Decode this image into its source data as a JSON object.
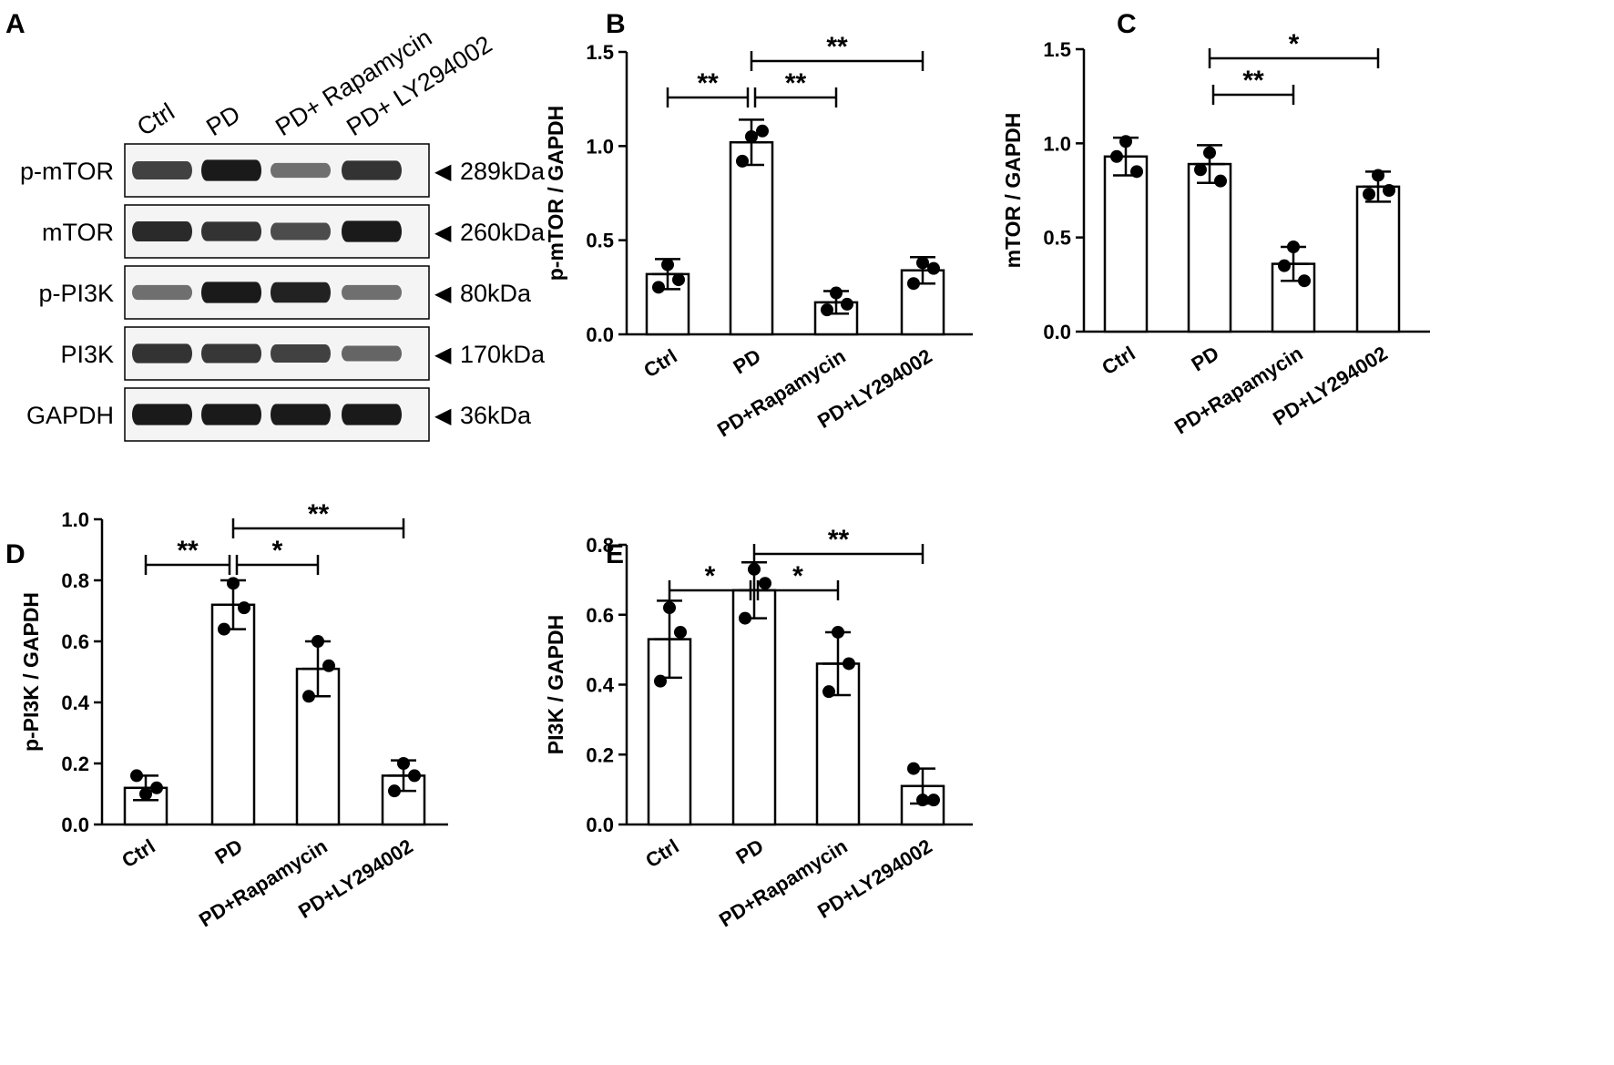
{
  "panel_a": {
    "label": "A",
    "lanes": [
      "Ctrl",
      "PD",
      "PD+ Rapamycin",
      "PD+ LY294002"
    ],
    "blots": [
      {
        "protein": "p-mTOR",
        "size": "289kDa",
        "intensity": [
          0.72,
          0.95,
          0.45,
          0.8
        ]
      },
      {
        "protein": "mTOR",
        "size": "260kDa",
        "intensity": [
          0.85,
          0.8,
          0.65,
          0.95
        ]
      },
      {
        "protein": "p-PI3K",
        "size": "80kDa",
        "intensity": [
          0.45,
          0.95,
          0.9,
          0.45
        ]
      },
      {
        "protein": "PI3K",
        "size": "170kDa",
        "intensity": [
          0.8,
          0.78,
          0.72,
          0.5
        ]
      },
      {
        "protein": "GAPDH",
        "size": "36kDa",
        "intensity": [
          0.95,
          0.95,
          0.95,
          0.95
        ]
      }
    ],
    "arrow_glyph": "◀",
    "colors": {
      "band": "#111111",
      "membrane": "#f4f4f4"
    }
  },
  "chart_data": [
    {
      "panel": "B",
      "type": "bar",
      "categories": [
        "Ctrl",
        "PD",
        "PD+Rapamycin",
        "PD+LY294002"
      ],
      "values": [
        0.32,
        1.02,
        0.17,
        0.34
      ],
      "errors": [
        0.08,
        0.12,
        0.06,
        0.07
      ],
      "points": [
        [
          0.37,
          0.25,
          0.29
        ],
        [
          1.05,
          0.92,
          1.08
        ],
        [
          0.22,
          0.13,
          0.16
        ],
        [
          0.38,
          0.27,
          0.35
        ]
      ],
      "ylabel": "p-mTOR / GAPDH",
      "ylim": [
        0,
        1.5
      ],
      "yticks": [
        "0.0",
        "0.5",
        "1.0",
        "1.5"
      ],
      "tick_values": [
        0,
        0.5,
        1.0,
        1.5
      ],
      "significance": [
        {
          "from": 0,
          "to": 1,
          "level": 1,
          "label": "**"
        },
        {
          "from": 1,
          "to": 2,
          "level": 1,
          "label": "**"
        },
        {
          "from": 1,
          "to": 3,
          "level": 2,
          "label": "**"
        }
      ]
    },
    {
      "panel": "C",
      "type": "bar",
      "categories": [
        "Ctrl",
        "PD",
        "PD+Rapamycin",
        "PD+LY294002"
      ],
      "values": [
        0.93,
        0.89,
        0.36,
        0.77
      ],
      "errors": [
        0.1,
        0.1,
        0.09,
        0.08
      ],
      "points": [
        [
          1.01,
          0.93,
          0.85
        ],
        [
          0.95,
          0.86,
          0.8
        ],
        [
          0.45,
          0.35,
          0.27
        ],
        [
          0.83,
          0.73,
          0.75
        ]
      ],
      "ylabel": "mTOR / GAPDH",
      "ylim": [
        0,
        1.5
      ],
      "yticks": [
        "0.0",
        "0.5",
        "1.0",
        "1.5"
      ],
      "tick_values": [
        0,
        0.5,
        1.0,
        1.5
      ],
      "significance": [
        {
          "from": 1,
          "to": 2,
          "level": 1,
          "label": "**"
        },
        {
          "from": 1,
          "to": 3,
          "level": 2,
          "label": "*"
        }
      ]
    },
    {
      "panel": "D",
      "type": "bar",
      "categories": [
        "Ctrl",
        "PD",
        "PD+Rapamycin",
        "PD+LY294002"
      ],
      "values": [
        0.12,
        0.72,
        0.51,
        0.16
      ],
      "errors": [
        0.04,
        0.08,
        0.09,
        0.05
      ],
      "points": [
        [
          0.1,
          0.16,
          0.12
        ],
        [
          0.79,
          0.64,
          0.71
        ],
        [
          0.6,
          0.42,
          0.52
        ],
        [
          0.2,
          0.11,
          0.16
        ]
      ],
      "ylabel": "p-PI3K / GAPDH",
      "ylim": [
        0,
        1.0
      ],
      "yticks": [
        "0.0",
        "0.2",
        "0.4",
        "0.6",
        "0.8",
        "1.0"
      ],
      "tick_values": [
        0,
        0.2,
        0.4,
        0.6,
        0.8,
        1.0
      ],
      "significance": [
        {
          "from": 0,
          "to": 1,
          "level": 1,
          "label": "**"
        },
        {
          "from": 1,
          "to": 2,
          "level": 1,
          "label": "*"
        },
        {
          "from": 1,
          "to": 3,
          "level": 2,
          "label": "**"
        }
      ]
    },
    {
      "panel": "E",
      "type": "bar",
      "categories": [
        "Ctrl",
        "PD",
        "PD+Rapamycin",
        "PD+LY294002"
      ],
      "values": [
        0.53,
        0.67,
        0.46,
        0.11
      ],
      "errors": [
        0.11,
        0.08,
        0.09,
        0.05
      ],
      "points": [
        [
          0.62,
          0.41,
          0.55
        ],
        [
          0.73,
          0.59,
          0.69
        ],
        [
          0.55,
          0.38,
          0.46
        ],
        [
          0.07,
          0.16,
          0.07
        ]
      ],
      "ylabel": "PI3K / GAPDH",
      "ylim": [
        0,
        0.8
      ],
      "yticks": [
        "0.0",
        "0.2",
        "0.4",
        "0.6",
        "0.8"
      ],
      "tick_values": [
        0,
        0.2,
        0.4,
        0.6,
        0.8
      ],
      "significance": [
        {
          "from": 0,
          "to": 1,
          "level": 1,
          "label": "*"
        },
        {
          "from": 1,
          "to": 2,
          "level": 1,
          "label": "*"
        },
        {
          "from": 1,
          "to": 3,
          "level": 2,
          "label": "**"
        }
      ]
    }
  ]
}
